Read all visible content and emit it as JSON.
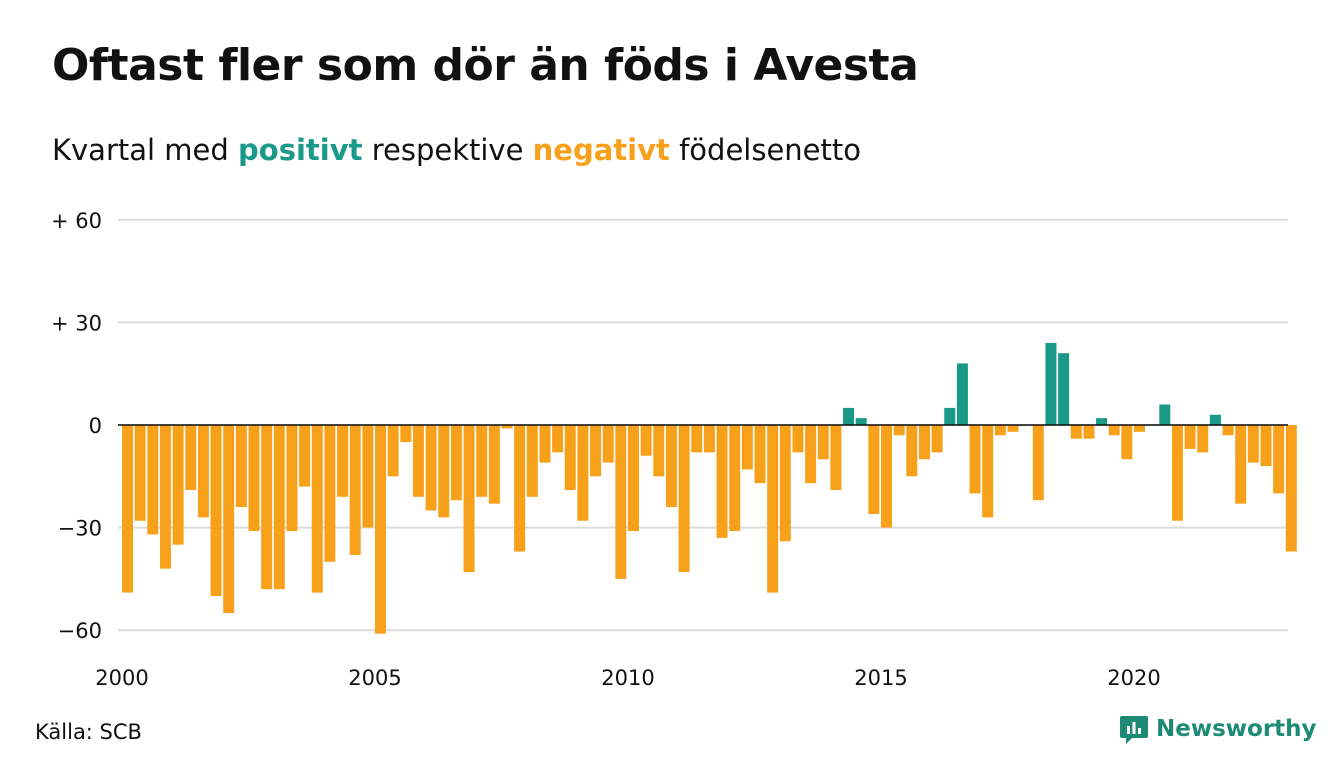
{
  "header": {
    "title": "Oftast fler som dör än föds i Avesta",
    "subtitle_pre": "Kvartal med",
    "subtitle_pos": "positivt",
    "subtitle_mid": "respektive",
    "subtitle_neg": "negativt",
    "subtitle_post": "födelsenetto"
  },
  "footer": {
    "source": "Källa: SCB",
    "brand": "Newsworthy"
  },
  "colors": {
    "positive": "#1a9988",
    "negative": "#f7a11b",
    "grid": "#dcdcdc",
    "brand": "#1c8a74"
  },
  "chart_data": {
    "type": "bar",
    "title": "Oftast fler som dör än föds i Avesta",
    "subtitle": "Kvartal med positivt respektive negativt födelsenetto",
    "xlabel": "",
    "ylabel": "",
    "ylim": [
      -64,
      60
    ],
    "y_ticks": [
      {
        "value": 60,
        "label": "+ 60"
      },
      {
        "value": 30,
        "label": "+ 30"
      },
      {
        "value": 0,
        "label": "0"
      },
      {
        "value": -30,
        "label": "−30"
      },
      {
        "value": -60,
        "label": "−60"
      }
    ],
    "x_ticks": [
      {
        "year": 2000,
        "label": "2000"
      },
      {
        "year": 2005,
        "label": "2005"
      },
      {
        "year": 2010,
        "label": "2010"
      },
      {
        "year": 2015,
        "label": "2015"
      },
      {
        "year": 2020,
        "label": "2020"
      }
    ],
    "start_year": 2000,
    "grid": true,
    "legend": "none",
    "series": [
      {
        "values": [
          -49,
          -28,
          -32,
          -42,
          -35,
          -19,
          -27,
          -50,
          -55,
          -24,
          -31,
          -48,
          -48,
          -31,
          -18,
          -49,
          -40,
          -21,
          -38,
          -30,
          -61,
          -15,
          -5,
          -21,
          -25,
          -27,
          -22,
          -43,
          -21,
          -23,
          -1,
          -37,
          -21,
          -11,
          -8,
          -19,
          -28,
          -15,
          -11,
          -45,
          -31,
          -9,
          -15,
          -24,
          -43,
          -8,
          -8,
          -33,
          -31,
          -13,
          -17,
          -49,
          -34,
          -8,
          -17,
          -10,
          -19,
          5,
          2,
          -26,
          -30,
          -3,
          -15,
          -10,
          -8,
          5,
          18,
          -20,
          -27,
          -3,
          -2,
          0,
          -22,
          24,
          21,
          -4,
          -4,
          2,
          -3,
          -10,
          -2,
          0,
          6,
          -28,
          -7,
          -8,
          3,
          -3,
          -23,
          -11,
          -12,
          -20,
          -37
        ]
      }
    ]
  }
}
